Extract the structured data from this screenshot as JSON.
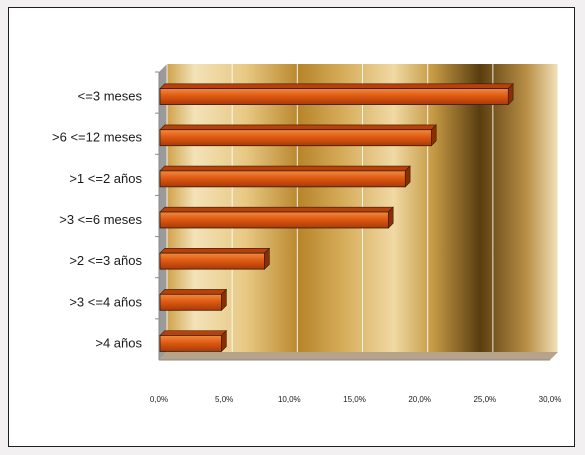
{
  "chart_data": {
    "type": "bar",
    "orientation": "horizontal",
    "categories": [
      "<=3 meses",
      ">6 <=12 meses",
      ">1 <=2 años",
      ">3 <=6 meses",
      ">2 <=3 años",
      ">3 <=4 años",
      ">4 años"
    ],
    "values": [
      26.8,
      20.9,
      18.9,
      17.6,
      8.1,
      4.8,
      4.8
    ],
    "xlim": [
      0,
      30
    ],
    "xticks": [
      "0,0%",
      "5,0%",
      "10,0%",
      "15,0%",
      "20,0%",
      "25,0%",
      "30,0%"
    ],
    "grid": true,
    "legend": "none",
    "title": "",
    "xlabel": "",
    "ylabel": "",
    "colors": {
      "bar_front": "#e05a12",
      "bar_top": "#b8400a",
      "bar_side": "#8a2e06",
      "wall_dark": "#5a3d10",
      "wall_light": "#f3e2b8",
      "wall_mid": "#b8862c"
    }
  }
}
